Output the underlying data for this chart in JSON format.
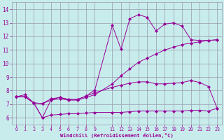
{
  "background_color": "#c8ecec",
  "line_color": "#990099",
  "grid_color": "#9999aa",
  "xlabel": "Windchill (Refroidissement éolien,°C)",
  "xlabel_color": "#990099",
  "tick_color": "#990099",
  "ylim": [
    5.5,
    14.5
  ],
  "xlim": [
    -0.5,
    23.5
  ],
  "yticks": [
    6,
    7,
    8,
    9,
    10,
    11,
    12,
    13,
    14
  ],
  "xticks": [
    0,
    1,
    2,
    3,
    4,
    5,
    6,
    7,
    8,
    9,
    11,
    12,
    13,
    14,
    15,
    16,
    17,
    18,
    19,
    20,
    21,
    22,
    23
  ],
  "series1_x": [
    0,
    1,
    2,
    3,
    4,
    5,
    6,
    7,
    8,
    9,
    11,
    12,
    13,
    14,
    15,
    16,
    17,
    18,
    19,
    20,
    21,
    22,
    23
  ],
  "series1_y": [
    7.55,
    7.55,
    7.1,
    7.05,
    7.3,
    7.4,
    7.3,
    7.3,
    7.5,
    7.7,
    8.5,
    9.1,
    9.6,
    10.1,
    10.4,
    10.7,
    11.0,
    11.2,
    11.4,
    11.5,
    11.6,
    11.7,
    11.75
  ],
  "series2_x": [
    0,
    1,
    2,
    3,
    4,
    5,
    6,
    7,
    8,
    9,
    11,
    12,
    13,
    14,
    15,
    16,
    17,
    18,
    19,
    20,
    21,
    22,
    23
  ],
  "series2_y": [
    7.55,
    7.7,
    7.1,
    6.0,
    7.35,
    7.5,
    7.35,
    7.35,
    7.6,
    8.05,
    12.8,
    11.05,
    13.3,
    13.6,
    13.4,
    12.4,
    12.9,
    13.0,
    12.75,
    11.75,
    11.7,
    11.7,
    11.75
  ],
  "series3_x": [
    0,
    1,
    2,
    3,
    4,
    5,
    6,
    7,
    8,
    9,
    11,
    12,
    13,
    14,
    15,
    16,
    17,
    18,
    19,
    20,
    21,
    22,
    23
  ],
  "series3_y": [
    7.55,
    7.55,
    7.1,
    7.05,
    7.4,
    7.5,
    7.35,
    7.35,
    7.6,
    7.85,
    8.25,
    8.4,
    8.55,
    8.65,
    8.65,
    8.5,
    8.5,
    8.55,
    8.6,
    8.75,
    8.6,
    8.3,
    6.7
  ],
  "series4_x": [
    0,
    1,
    2,
    3,
    4,
    5,
    6,
    7,
    8,
    9,
    11,
    12,
    13,
    14,
    15,
    16,
    17,
    18,
    19,
    20,
    21,
    22,
    23
  ],
  "series4_y": [
    7.55,
    7.55,
    7.1,
    6.0,
    6.2,
    6.25,
    6.3,
    6.3,
    6.35,
    6.4,
    6.4,
    6.4,
    6.45,
    6.5,
    6.5,
    6.5,
    6.5,
    6.5,
    6.5,
    6.55,
    6.55,
    6.5,
    6.7
  ]
}
